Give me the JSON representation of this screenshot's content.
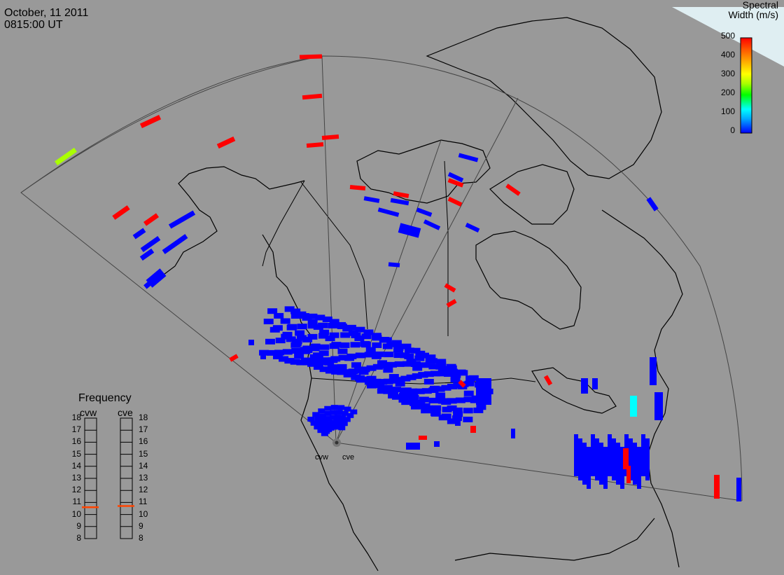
{
  "header": {
    "date": "October, 11 2011",
    "time": "0815:00 UT"
  },
  "colorbar": {
    "title_line1": "Spectral",
    "title_line2": "Width (m/s)",
    "ticks": [
      "500",
      "400",
      "300",
      "200",
      "100",
      "0"
    ],
    "range": [
      0,
      500
    ],
    "colors": [
      "#0000ff",
      "#00aaff",
      "#00ffff",
      "#00ff00",
      "#aaff00",
      "#ffff00",
      "#ffaa00",
      "#ff5500",
      "#ff0000"
    ]
  },
  "frequency_panel": {
    "title": "Frequency",
    "sites": [
      "cvw",
      "cve"
    ],
    "ticks": [
      "18",
      "17",
      "16",
      "15",
      "14",
      "13",
      "12",
      "11",
      "10",
      "9",
      "8"
    ],
    "range_mhz": [
      8,
      18
    ],
    "current_mhz": {
      "cvw": 10.6,
      "cve": 10.7
    },
    "indicator_color": "#ff4400"
  },
  "radar_sites": {
    "labels": [
      "cvw",
      "cve"
    ]
  },
  "colors": {
    "background": "#999999",
    "coastline": "#000000",
    "fov_outline": "#444444"
  }
}
